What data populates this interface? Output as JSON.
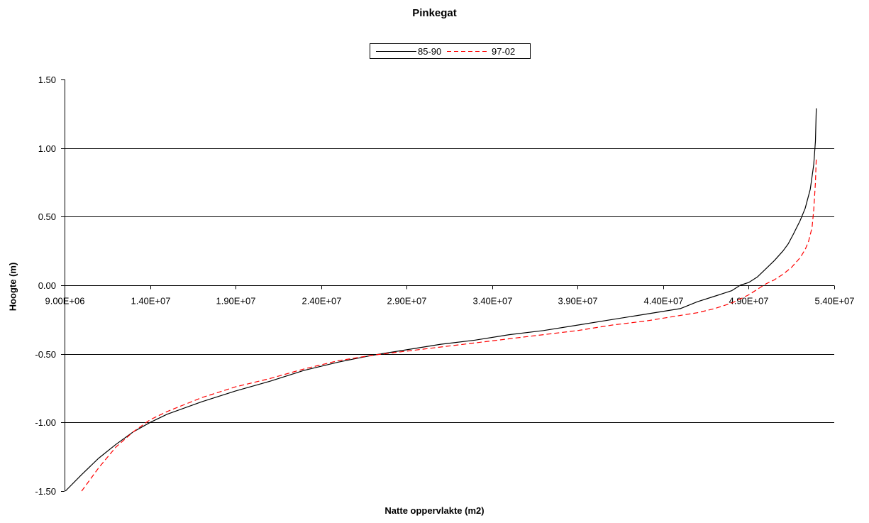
{
  "chart_data": {
    "type": "line",
    "title": "Pinkegat",
    "xlabel": "Natte oppervlakte (m2)",
    "ylabel": "Hoogte (m)",
    "xlim": [
      9000000,
      54000000
    ],
    "ylim": [
      -1.5,
      1.5
    ],
    "x_ticks": [
      "9.00E+06",
      "1.40E+07",
      "1.90E+07",
      "2.40E+07",
      "2.90E+07",
      "3.40E+07",
      "3.90E+07",
      "4.40E+07",
      "4.90E+07",
      "5.40E+07"
    ],
    "y_ticks": [
      "1.50",
      "1.00",
      "0.50",
      "0.00",
      "-0.50",
      "-1.00",
      "-1.50"
    ],
    "grid": "horizontal",
    "legend_position": "top-center",
    "series": [
      {
        "name": "85-90",
        "color": "#000000",
        "dash": "solid",
        "x": [
          9050000,
          10000000,
          11000000,
          12000000,
          13000000,
          14000000,
          15000000,
          17000000,
          19000000,
          21000000,
          23000000,
          25000000,
          27000000,
          29000000,
          31000000,
          33000000,
          35000000,
          37000000,
          39000000,
          41000000,
          43000000,
          45000000,
          46000000,
          47000000,
          48000000,
          48500000,
          49000000,
          49500000,
          50000000,
          50500000,
          51000000,
          51300000,
          51600000,
          52000000,
          52300000,
          52600000,
          52800000,
          52900000,
          52950000
        ],
        "y": [
          -1.5,
          -1.38,
          -1.26,
          -1.16,
          -1.07,
          -1.0,
          -0.94,
          -0.85,
          -0.77,
          -0.7,
          -0.62,
          -0.56,
          -0.51,
          -0.47,
          -0.43,
          -0.4,
          -0.36,
          -0.33,
          -0.29,
          -0.25,
          -0.21,
          -0.17,
          -0.12,
          -0.08,
          -0.04,
          0.0,
          0.02,
          0.06,
          0.12,
          0.18,
          0.25,
          0.3,
          0.37,
          0.47,
          0.56,
          0.7,
          0.88,
          1.05,
          1.29
        ]
      },
      {
        "name": "97-02",
        "color": "#ff0000",
        "dash": "dashed",
        "x": [
          10000000,
          11000000,
          12000000,
          13000000,
          14000000,
          15000000,
          17000000,
          19000000,
          21000000,
          23000000,
          25000000,
          27000000,
          29000000,
          31000000,
          33000000,
          35000000,
          37000000,
          39000000,
          41000000,
          43000000,
          45000000,
          46000000,
          47000000,
          48000000,
          49000000,
          49500000,
          50000000,
          50500000,
          51000000,
          51500000,
          52000000,
          52300000,
          52500000,
          52700000,
          52800000,
          52900000,
          52950000
        ],
        "y": [
          -1.5,
          -1.33,
          -1.18,
          -1.07,
          -0.98,
          -0.92,
          -0.82,
          -0.74,
          -0.68,
          -0.61,
          -0.55,
          -0.51,
          -0.48,
          -0.45,
          -0.42,
          -0.39,
          -0.36,
          -0.33,
          -0.29,
          -0.26,
          -0.22,
          -0.2,
          -0.17,
          -0.13,
          -0.07,
          -0.03,
          0.01,
          0.04,
          0.08,
          0.13,
          0.2,
          0.26,
          0.32,
          0.42,
          0.55,
          0.75,
          0.93
        ]
      }
    ]
  }
}
